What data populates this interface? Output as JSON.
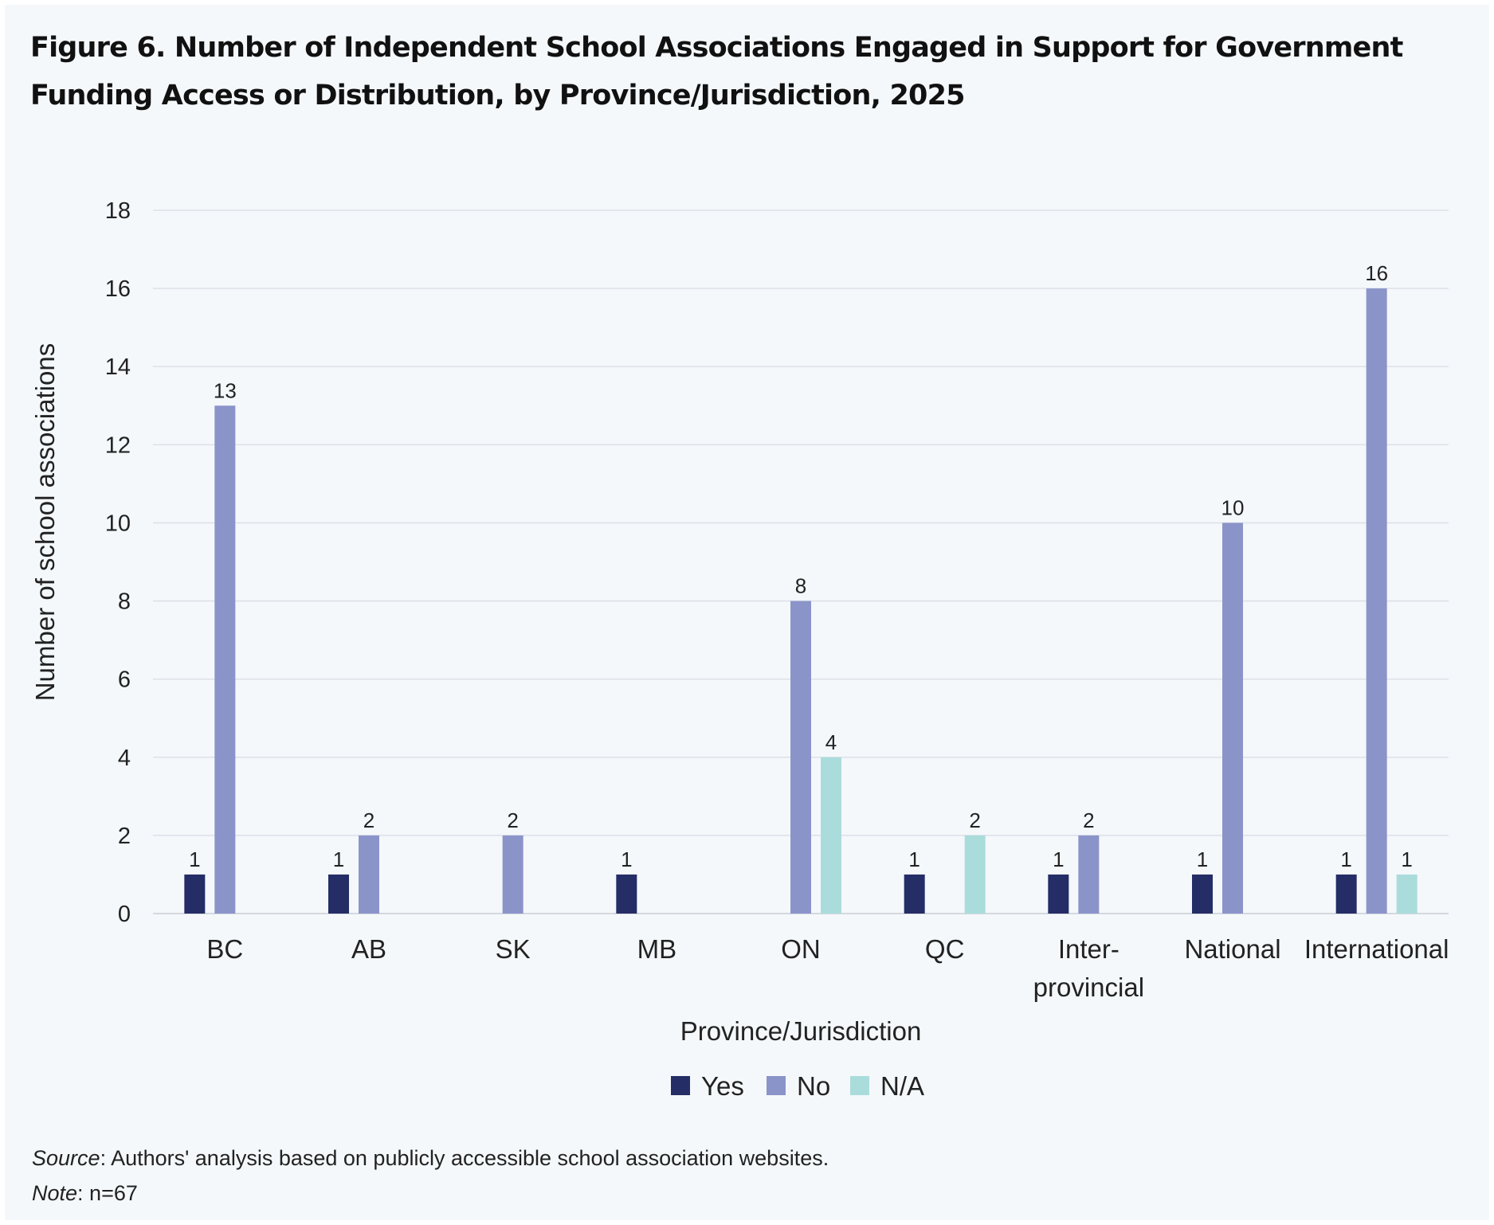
{
  "figure": {
    "title": "Figure 6. Number of Independent School Associations Engaged in Support for Government Funding Access or Distribution, by Province/Jurisdiction, 2025",
    "source_label": "Source",
    "source_text": ": Authors' analysis based on publicly accessible school association websites.",
    "note_label": "Note",
    "note_text": ": n=67"
  },
  "chart_data": {
    "type": "bar",
    "title": "Figure 6. Number of Independent School Associations Engaged in Support for Government Funding Access or Distribution, by Province/Jurisdiction, 2025",
    "xlabel": "Province/Jurisdiction",
    "ylabel": "Number of school associations",
    "categories": [
      "BC",
      "AB",
      "SK",
      "MB",
      "ON",
      "QC",
      "Inter-\nprovincial",
      "National",
      "International"
    ],
    "series": [
      {
        "name": "Yes",
        "color": "#252d66",
        "values": [
          1,
          1,
          null,
          1,
          null,
          1,
          1,
          1,
          1
        ]
      },
      {
        "name": "No",
        "color": "#8b94c9",
        "values": [
          13,
          2,
          2,
          null,
          8,
          null,
          2,
          10,
          16
        ]
      },
      {
        "name": "N/A",
        "color": "#abdcdc",
        "values": [
          null,
          null,
          null,
          null,
          4,
          2,
          null,
          null,
          1
        ]
      }
    ],
    "ylim": [
      0,
      18
    ],
    "yticks": [
      0,
      2,
      4,
      6,
      8,
      10,
      12,
      14,
      16,
      18
    ],
    "grid": true,
    "legend_position": "bottom-center",
    "data_labels": true
  }
}
